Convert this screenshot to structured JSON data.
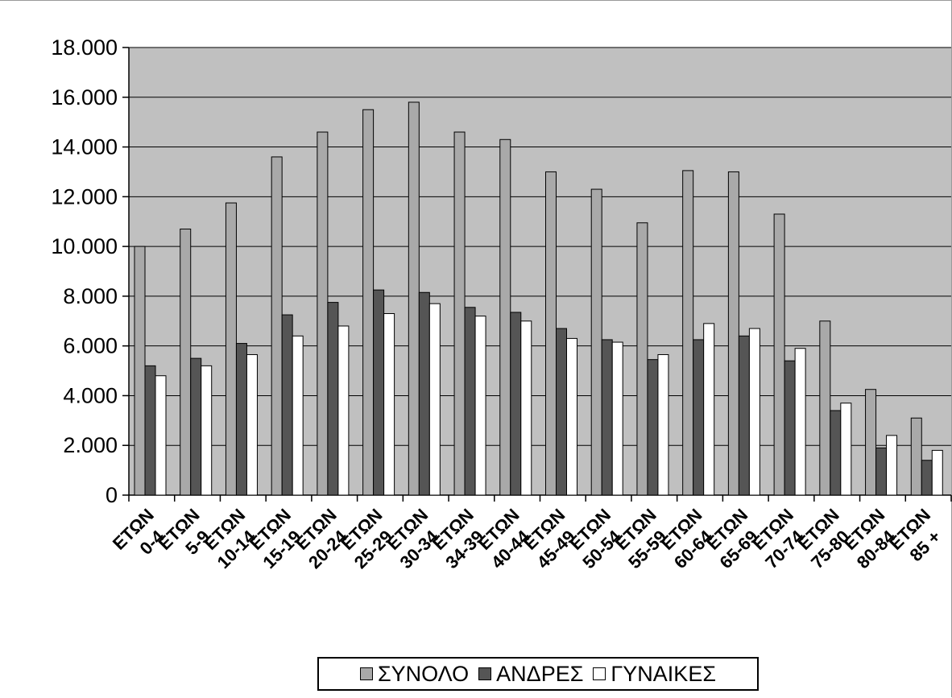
{
  "chart_data": {
    "type": "bar",
    "categories": [
      [
        "0-4",
        "ΕΤΩΝ"
      ],
      [
        "5-9",
        "ΕΤΩΝ"
      ],
      [
        "10-14",
        "ΕΤΩΝ"
      ],
      [
        "15-19",
        "ΕΤΩΝ"
      ],
      [
        "20-24",
        "ΕΤΩΝ"
      ],
      [
        "25-29",
        "ΕΤΩΝ"
      ],
      [
        "30-34",
        "ΕΤΩΝ"
      ],
      [
        "34-39",
        "ΕΤΩΝ"
      ],
      [
        "40-44",
        "ΕΤΩΝ"
      ],
      [
        "45-49",
        "ΕΤΩΝ"
      ],
      [
        "50-54",
        "ΕΤΩΝ"
      ],
      [
        "55-59",
        "ΕΤΩΝ"
      ],
      [
        "60-64",
        "ΕΤΩΝ"
      ],
      [
        "65-69",
        "ΕΤΩΝ"
      ],
      [
        "70-74",
        "ΕΤΩΝ"
      ],
      [
        "75-80",
        "ΕΤΩΝ"
      ],
      [
        "80-84",
        "ΕΤΩΝ"
      ],
      [
        "85 +",
        "ΕΤΩΝ"
      ]
    ],
    "series": [
      {
        "name": "ΣΥΝΟΛΟ",
        "color": "#a9a9a9",
        "values": [
          10000,
          10700,
          11750,
          13600,
          14600,
          15500,
          15800,
          14600,
          14300,
          13000,
          12300,
          10950,
          13050,
          13000,
          11300,
          7000,
          4250,
          3100
        ]
      },
      {
        "name": "ΑΝΔΡΕΣ",
        "color": "#555555",
        "values": [
          5200,
          5500,
          6100,
          7250,
          7750,
          8250,
          8150,
          7550,
          7350,
          6700,
          6250,
          5450,
          6250,
          6400,
          5400,
          3400,
          1900,
          1400
        ]
      },
      {
        "name": "ΓΥΝΑΙΚΕΣ",
        "color": "#ffffff",
        "values": [
          4800,
          5200,
          5650,
          6400,
          6800,
          7300,
          7700,
          7200,
          7000,
          6300,
          6150,
          5650,
          6900,
          6700,
          5900,
          3700,
          2400,
          1800
        ]
      }
    ],
    "y_ticks": [
      "0",
      "2.000",
      "4.000",
      "6.000",
      "8.000",
      "10.000",
      "12.000",
      "14.000",
      "16.000",
      "18.000"
    ],
    "ylim": [
      0,
      18000
    ],
    "grid": true,
    "legend_position": "bottom",
    "plot_background": "#c0c0c0"
  }
}
